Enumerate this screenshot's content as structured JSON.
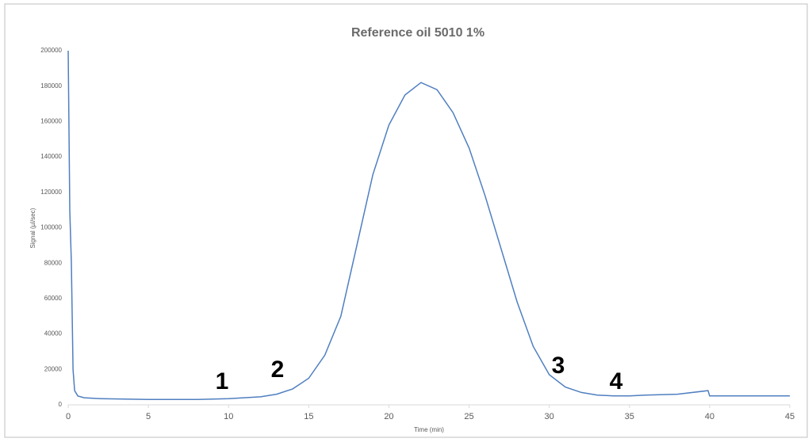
{
  "chart_data": {
    "type": "line",
    "title": "Reference oil 5010 1%",
    "x_label": "Time (min)",
    "y_label": "Signal (µl/sec)",
    "x": [
      0,
      0.1,
      0.2,
      0.3,
      0.4,
      0.6,
      1,
      2,
      5,
      8,
      10,
      12,
      13,
      14,
      15,
      16,
      17,
      18,
      19,
      20,
      21,
      22,
      23,
      24,
      25,
      26,
      27,
      28,
      29,
      30,
      31,
      32,
      33,
      34,
      35,
      36,
      38,
      39.9,
      40,
      45
    ],
    "values": [
      200000,
      110000,
      80000,
      20000,
      8000,
      5000,
      4000,
      3500,
      3000,
      3000,
      3500,
      4500,
      6000,
      9000,
      15000,
      28000,
      50000,
      90000,
      130000,
      158000,
      175000,
      182000,
      178000,
      165000,
      145000,
      118000,
      88000,
      58000,
      33000,
      17000,
      10000,
      7000,
      5500,
      5000,
      5000,
      5500,
      6000,
      8000,
      5000,
      5000
    ],
    "color": "#4f7fc0",
    "xlim": [
      0,
      45
    ],
    "xticks": [
      0,
      5,
      10,
      15,
      20,
      25,
      30,
      35,
      40,
      45
    ],
    "ylim": [
      0,
      200000
    ],
    "yticks": [
      0,
      20000,
      40000,
      60000,
      80000,
      100000,
      120000,
      140000,
      160000,
      180000,
      200000
    ],
    "grid": false,
    "annotations": [
      "1",
      "2",
      "3",
      "4"
    ]
  }
}
